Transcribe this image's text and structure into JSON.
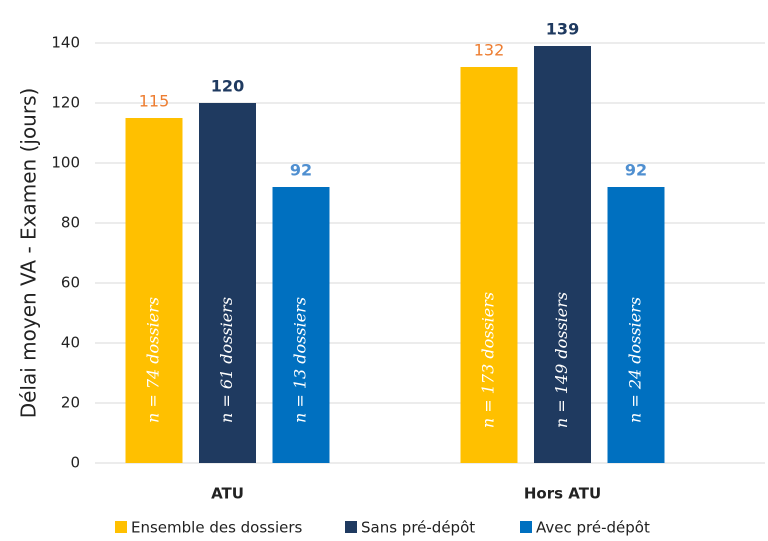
{
  "chart_data": {
    "type": "bar",
    "ylabel": "Délai moyen VA - Examen (jours)",
    "categories": [
      "ATU",
      "Hors ATU"
    ],
    "series": [
      {
        "name": "Ensemble des dossiers",
        "color": "#FFC000",
        "label_color": "#ED7D31",
        "label_bold": false,
        "values": [
          115,
          132
        ],
        "annotations": [
          "n = 74 dossiers",
          "n = 173 dossiers"
        ]
      },
      {
        "name": "Sans pré-dépôt",
        "color": "#1F3A60",
        "label_color": "#1F3A60",
        "label_bold": true,
        "values": [
          120,
          139
        ],
        "annotations": [
          "n = 61 dossiers",
          "n = 149 dossiers"
        ]
      },
      {
        "name": "Avec pré-dépôt",
        "color": "#0070C0",
        "label_color": "#4F8FD0",
        "label_bold": true,
        "values": [
          92,
          92
        ],
        "annotations": [
          "n = 13 dossiers",
          "n = 24 dossiers"
        ]
      }
    ],
    "ylim": [
      0,
      140
    ],
    "yticks": [
      0,
      20,
      40,
      60,
      80,
      100,
      120,
      140
    ],
    "grid": true,
    "legend": "bottom"
  }
}
